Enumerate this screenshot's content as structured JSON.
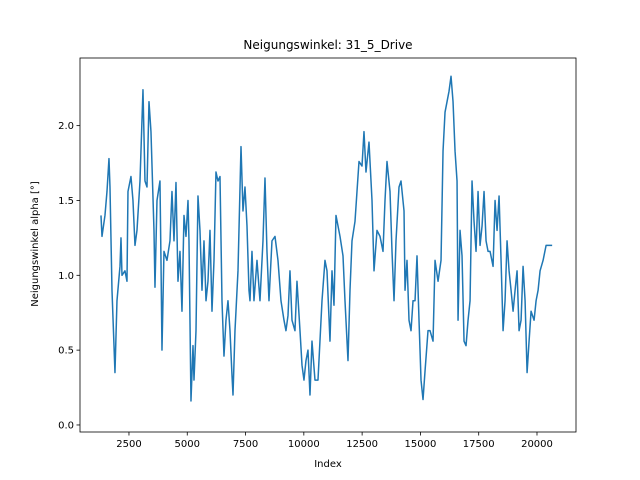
{
  "chart_data": {
    "type": "line",
    "title": "Neigungswinkel: 31_5_Drive",
    "xlabel": "Index",
    "ylabel": "Neigungswinkel alpha [°]",
    "xlim": [
      400,
      21673
    ],
    "ylim": [
      -0.047,
      2.452
    ],
    "xticks": [
      2500,
      5000,
      7500,
      10000,
      12500,
      15000,
      17500,
      20000
    ],
    "yticks": [
      {
        "value": 0,
        "label": "0.0"
      },
      0.5,
      {
        "value": 1,
        "label": "1.0"
      },
      1.5,
      {
        "value": 2,
        "label": "2.0"
      }
    ],
    "grid": false,
    "series": [
      {
        "color": "#1f77b4",
        "x": [
          1300,
          1343,
          1471,
          1557,
          1643,
          1686,
          1772,
          1900,
          1986,
          2115,
          2158,
          2201,
          2329,
          2415,
          2458,
          2586,
          2672,
          2758,
          2844,
          2973,
          3101,
          3187,
          3273,
          3359,
          3444,
          3573,
          3616,
          3702,
          3830,
          3873,
          3916,
          4002,
          4130,
          4259,
          4345,
          4431,
          4517,
          4602,
          4688,
          4774,
          4860,
          4946,
          5032,
          5074,
          5160,
          5246,
          5289,
          5375,
          5460,
          5546,
          5632,
          5718,
          5804,
          5889,
          5975,
          6061,
          6147,
          6232,
          6318,
          6404,
          6490,
          6575,
          6661,
          6747,
          6833,
          6919,
          6962,
          7047,
          7090,
          7176,
          7305,
          7390,
          7476,
          7562,
          7648,
          7691,
          7776,
          7862,
          7991,
          8119,
          8248,
          8334,
          8419,
          8505,
          8634,
          8763,
          8891,
          9020,
          9149,
          9234,
          9320,
          9406,
          9492,
          9620,
          9706,
          9835,
          9921,
          10006,
          10092,
          10178,
          10264,
          10350,
          10478,
          10607,
          10779,
          10907,
          10993,
          11122,
          11208,
          11293,
          11379,
          11465,
          11551,
          11680,
          11765,
          11894,
          11980,
          12066,
          12194,
          12280,
          12366,
          12495,
          12580,
          12666,
          12795,
          12924,
          13010,
          13138,
          13267,
          13396,
          13481,
          13567,
          13696,
          13782,
          13868,
          13953,
          14082,
          14168,
          14297,
          14340,
          14425,
          14511,
          14597,
          14683,
          14769,
          14854,
          14940,
          15026,
          15112,
          15198,
          15326,
          15412,
          15541,
          15627,
          15756,
          15884,
          15970,
          16056,
          16142,
          16227,
          16313,
          16399,
          16485,
          16571,
          16614,
          16699,
          16785,
          16871,
          16957,
          17043,
          17129,
          17214,
          17300,
          17386,
          17472,
          17558,
          17644,
          17729,
          17815,
          17901,
          17987,
          18116,
          18201,
          18287,
          18373,
          18459,
          18545,
          18630,
          18716,
          18802,
          18888,
          18974,
          19060,
          19145,
          19231,
          19317,
          19403,
          19489,
          19575,
          19660,
          19746,
          19875,
          19961,
          20047,
          20132,
          20261,
          20390,
          20562,
          20650
        ],
        "values": [
          1.4,
          1.26,
          1.4,
          1.56,
          1.78,
          1.59,
          0.9,
          0.35,
          0.83,
          1.06,
          1.25,
          1.0,
          1.03,
          0.96,
          1.56,
          1.66,
          1.5,
          1.2,
          1.3,
          1.63,
          2.24,
          1.63,
          1.59,
          2.16,
          1.96,
          1.3,
          0.92,
          1.5,
          1.63,
          1.1,
          0.5,
          1.16,
          1.1,
          1.23,
          1.56,
          1.23,
          1.62,
          0.96,
          1.16,
          0.76,
          1.4,
          1.26,
          1.5,
          1.23,
          0.16,
          0.53,
          0.3,
          0.63,
          1.53,
          1.3,
          0.9,
          1.23,
          0.83,
          0.96,
          1.3,
          0.76,
          1.1,
          1.69,
          1.63,
          1.66,
          0.83,
          0.46,
          0.7,
          0.83,
          0.63,
          0.33,
          0.2,
          0.63,
          0.76,
          1.03,
          1.86,
          1.43,
          1.59,
          1.33,
          0.9,
          0.83,
          1.16,
          0.83,
          1.1,
          0.83,
          1.23,
          1.65,
          1.16,
          0.83,
          1.23,
          1.26,
          1.1,
          0.83,
          0.7,
          0.63,
          0.73,
          1.03,
          0.7,
          0.63,
          0.96,
          0.63,
          0.4,
          0.3,
          0.43,
          0.5,
          0.2,
          0.56,
          0.3,
          0.3,
          0.83,
          1.1,
          1.03,
          0.56,
          1.03,
          0.8,
          1.4,
          1.33,
          1.26,
          1.13,
          0.83,
          0.43,
          0.9,
          1.23,
          1.36,
          1.56,
          1.76,
          1.73,
          1.96,
          1.69,
          1.89,
          1.5,
          1.03,
          1.3,
          1.26,
          1.16,
          1.5,
          1.76,
          1.56,
          1.16,
          0.83,
          1.23,
          1.59,
          1.63,
          1.43,
          0.9,
          1.1,
          0.7,
          0.63,
          0.83,
          0.83,
          1.13,
          0.7,
          0.3,
          0.17,
          0.36,
          0.63,
          0.63,
          0.56,
          1.1,
          0.96,
          1.1,
          1.83,
          2.09,
          2.16,
          2.23,
          2.33,
          2.16,
          1.83,
          1.63,
          0.7,
          1.3,
          1.13,
          0.56,
          0.53,
          0.7,
          0.83,
          1.63,
          1.36,
          1.16,
          1.56,
          1.2,
          1.33,
          1.56,
          1.23,
          1.16,
          1.16,
          1.06,
          1.5,
          1.3,
          1.53,
          1.1,
          0.63,
          0.83,
          1.23,
          1.03,
          0.9,
          0.76,
          0.9,
          1.03,
          0.63,
          0.7,
          1.06,
          0.83,
          0.35,
          0.56,
          0.76,
          0.7,
          0.83,
          0.9,
          1.03,
          1.1,
          1.2,
          1.2,
          1.2
        ]
      }
    ]
  }
}
